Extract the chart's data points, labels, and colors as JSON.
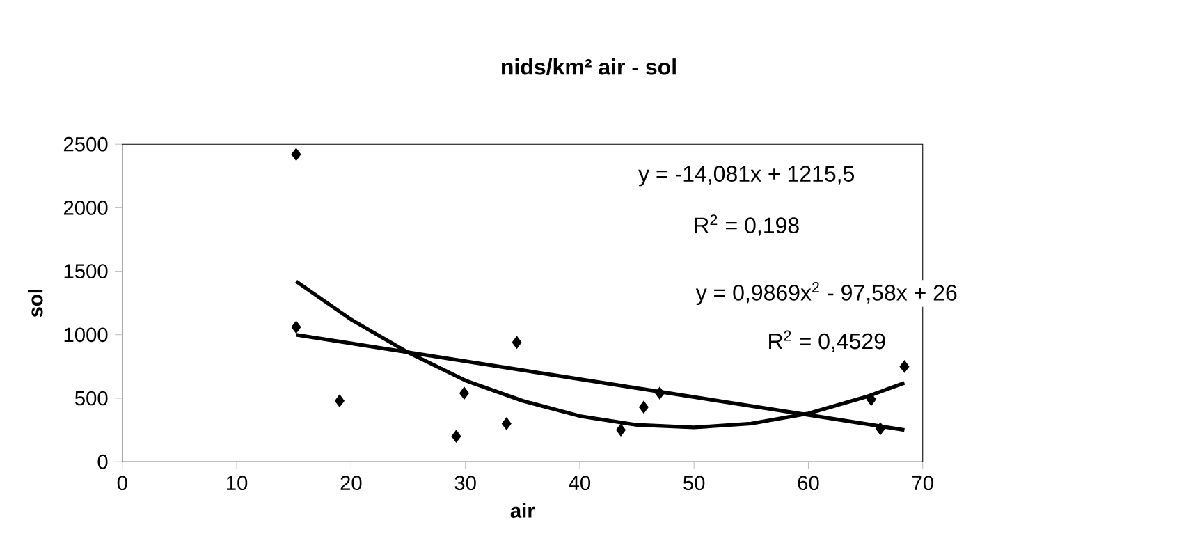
{
  "chart_data": {
    "type": "scatter",
    "title": "nids/km² air - sol",
    "xlabel": "air",
    "ylabel": "sol",
    "xlim": [
      0,
      70
    ],
    "xticks": [
      0,
      10,
      20,
      30,
      40,
      50,
      60,
      70
    ],
    "ylim": [
      0,
      2500
    ],
    "yticks": [
      0,
      500,
      1000,
      1500,
      2000,
      2500
    ],
    "marker": "diamond",
    "grid": false,
    "series": [
      {
        "color": "#000000",
        "x": [
          15.2,
          15.2,
          19,
          29.2,
          29.9,
          33.6,
          34.5,
          43.6,
          45.6,
          47.0,
          65.5,
          66.3,
          68.4
        ],
        "values": [
          2420,
          1060,
          480,
          200,
          540,
          300,
          940,
          250,
          430,
          540,
          490,
          260,
          750
        ]
      },
      {
        "type": "line",
        "color": "#000000",
        "marker": "none",
        "x": [
          15.2,
          68.4
        ],
        "values": [
          1000,
          250
        ]
      },
      {
        "type": "line",
        "color": "#000000",
        "marker": "none",
        "x": [
          15.2,
          20,
          25,
          30,
          35,
          40,
          45,
          50,
          55,
          60,
          65,
          68.4
        ],
        "values": [
          1420,
          1120,
          860,
          640,
          480,
          360,
          290,
          270,
          300,
          380,
          510,
          620
        ]
      }
    ],
    "annotations": [
      "y = -14,081x + 1215,5",
      "R$^{2}$ = 0,198",
      "y = 0,9869x$^{2}$ - 97,58x + 26",
      "R$^{2}$ = 0,4529"
    ]
  }
}
